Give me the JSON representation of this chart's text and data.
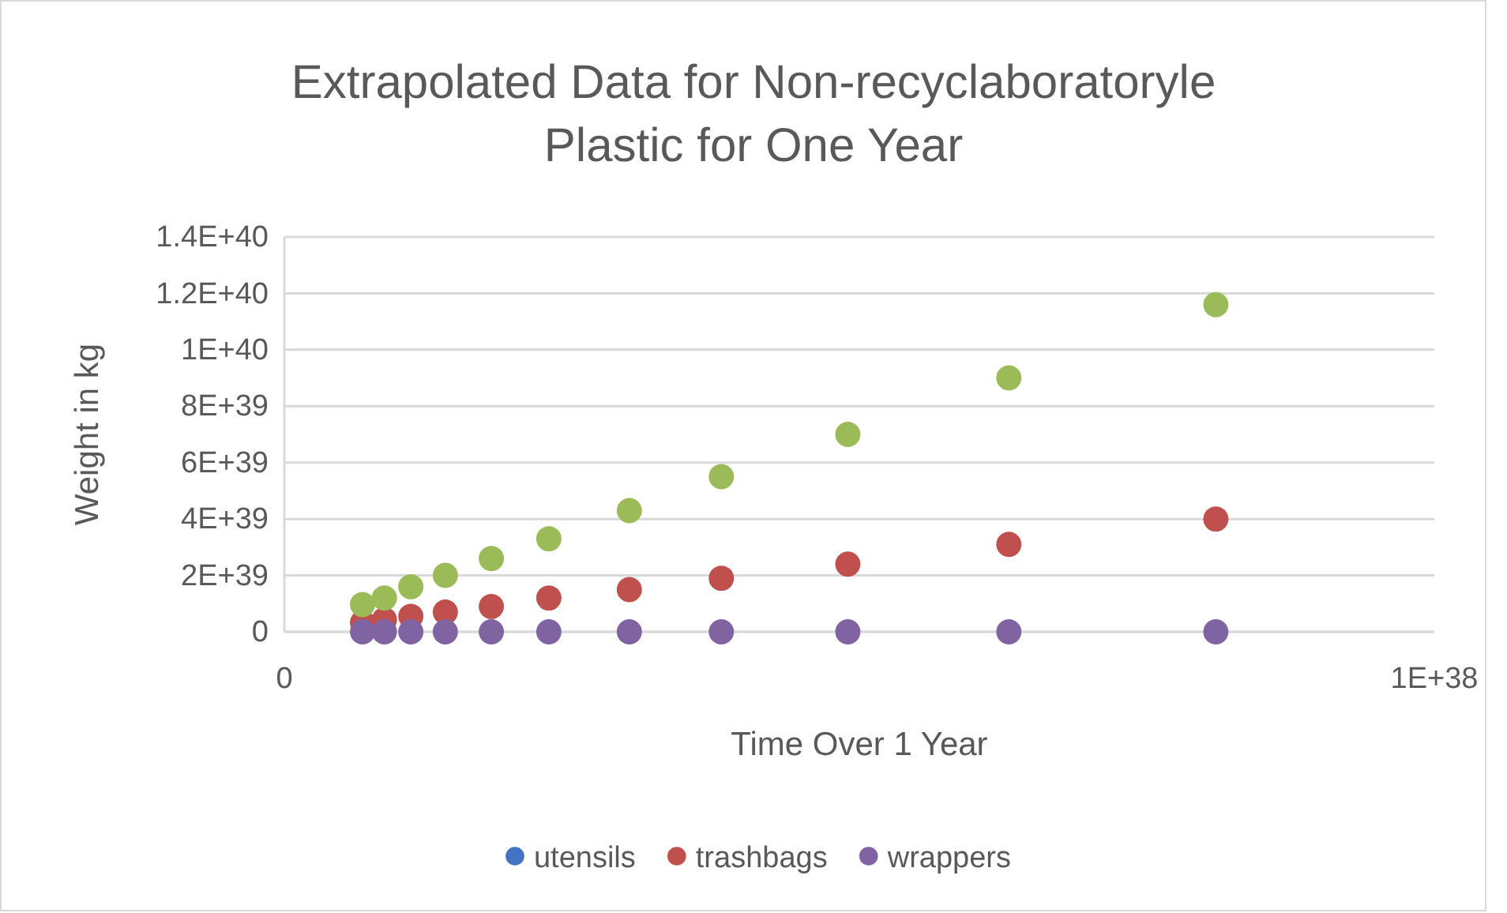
{
  "chart_data": {
    "type": "scatter",
    "title": "Extrapolated Data for Non-recyclaboratoryle Plastic for One Year",
    "xlabel": "Time Over 1 Year",
    "ylabel": "Weight in kg",
    "x": [
      8.1e+37,
      6.3e+37,
      4.9e+37,
      3.8e+37,
      3e+37,
      2.3e+37,
      1.8e+37,
      1.4e+37,
      1.1e+37,
      8.7e+36,
      6.8e+36
    ],
    "series": [
      {
        "name": "utensils",
        "color": "#4472c4",
        "values": [
          null,
          null,
          null,
          null,
          null,
          null,
          null,
          null,
          null,
          null,
          null
        ]
      },
      {
        "name": "trashbags",
        "color": "#c0504d",
        "values": [
          4e+39,
          3.1e+39,
          2.4e+39,
          1.9e+39,
          1.5e+39,
          1.2e+39,
          9e+38,
          7e+38,
          5.5e+38,
          4.3e+38,
          3.3e+38
        ]
      },
      {
        "color": "#9bbb59",
        "values": [
          1.16e+40,
          9e+39,
          7e+39,
          5.5e+39,
          4.3e+39,
          3.3e+39,
          2.6e+39,
          2e+39,
          1.6e+39,
          1.2e+39,
          9.7e+38
        ]
      },
      {
        "name": "wrappers",
        "color": "#8064a2",
        "values": [
          0,
          0,
          0,
          0,
          0,
          0,
          0,
          0,
          0,
          0,
          0
        ]
      }
    ],
    "xlim": [
      0,
      1e+38
    ],
    "xticks": [
      0,
      {
        "value": 1e+38,
        "label": "1E+38"
      }
    ],
    "ylim": [
      0,
      1.4e+40
    ],
    "yticks": [
      0,
      {
        "value": 2e+39,
        "label": "2E+39"
      },
      {
        "value": 4e+39,
        "label": "4E+39"
      },
      {
        "value": 6e+39,
        "label": "6E+39"
      },
      {
        "value": 8e+39,
        "label": "8E+39"
      },
      {
        "value": 1e+40,
        "label": "1E+40"
      },
      {
        "value": 1.2e+40,
        "label": "1.2E+40"
      },
      {
        "value": 1.4e+40,
        "label": "1.4E+40"
      }
    ],
    "grid": "y",
    "legend": "bottom",
    "marker": "circle"
  }
}
